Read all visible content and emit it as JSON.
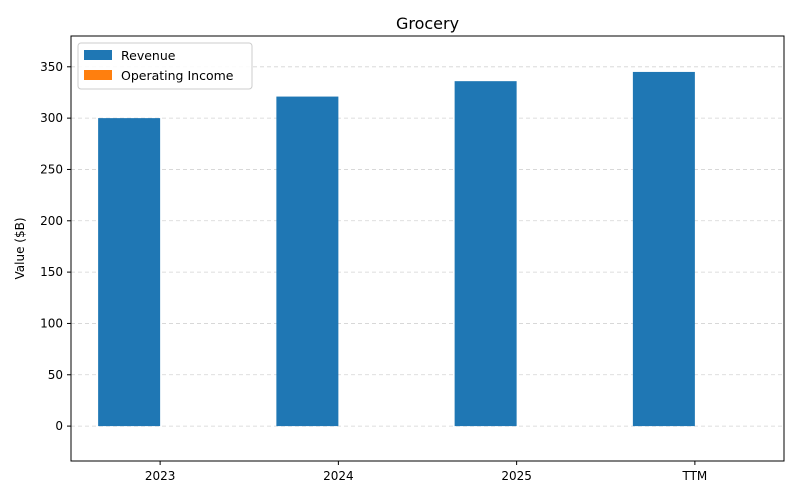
{
  "chart_data": {
    "type": "bar",
    "title": "Grocery",
    "xlabel": "",
    "ylabel": "Value ($B)",
    "categories": [
      "2023",
      "2024",
      "2025",
      "TTM"
    ],
    "series": [
      {
        "name": "Revenue",
        "values": [
          300,
          321,
          336,
          345
        ],
        "color": "#1f77b4"
      },
      {
        "name": "Operating Income",
        "values": [
          0,
          0,
          0,
          0
        ],
        "color": "#ff7f0e"
      }
    ],
    "ylim": [
      -34,
      380
    ],
    "yticks": [
      0,
      50,
      100,
      150,
      200,
      250,
      300,
      350
    ],
    "grid": true,
    "legend_position": "top-left"
  }
}
